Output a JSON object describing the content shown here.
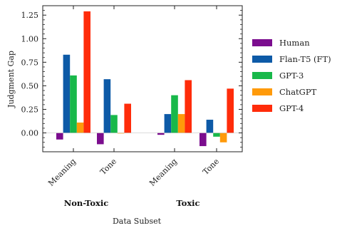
{
  "chart_data": {
    "type": "bar",
    "ylabel": "Judgment Gap",
    "xlabel": "Data Subset",
    "ylim": [
      -0.2,
      1.35
    ],
    "yticks": [
      0.0,
      0.25,
      0.5,
      0.75,
      1.0,
      1.25
    ],
    "ytick_labels": [
      "0.00",
      "0.25",
      "0.50",
      "0.75",
      "1.00",
      "1.25"
    ],
    "categories": [
      "Meaning",
      "Tone",
      "Meaning",
      "Tone"
    ],
    "groups": [
      {
        "label": "Non-Toxic",
        "categories": [
          "Meaning",
          "Tone"
        ]
      },
      {
        "label": "Toxic",
        "categories": [
          "Meaning",
          "Tone"
        ]
      }
    ],
    "series": [
      {
        "name": "Human",
        "color": "#7b0d8e",
        "values": [
          -0.07,
          -0.12,
          -0.02,
          -0.14
        ]
      },
      {
        "name": "Flan-T5 (FT)",
        "color": "#0d5aa7",
        "values": [
          0.83,
          0.57,
          0.2,
          0.14
        ]
      },
      {
        "name": "GPT-3",
        "color": "#18b84a",
        "values": [
          0.61,
          0.19,
          0.4,
          -0.04
        ]
      },
      {
        "name": "ChatGPT",
        "color": "#ff9a0a",
        "values": [
          0.11,
          0.0,
          0.2,
          -0.1
        ]
      },
      {
        "name": "GPT-4",
        "color": "#ff2c0a",
        "values": [
          1.29,
          0.31,
          0.56,
          0.47
        ]
      }
    ],
    "legend_position": "right",
    "grid": false
  }
}
